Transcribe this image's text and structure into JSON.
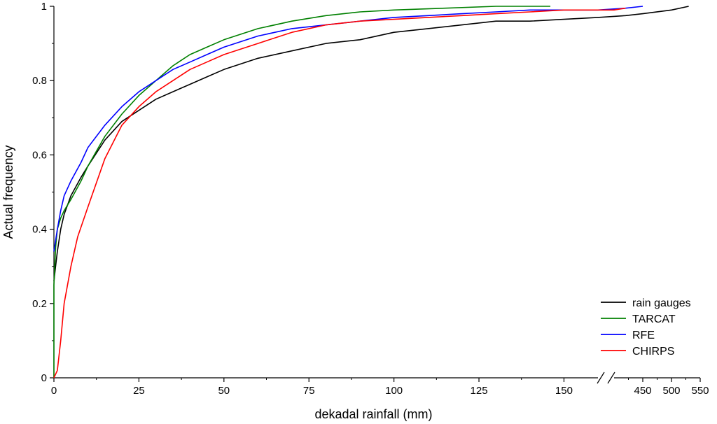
{
  "chart_data": {
    "type": "line",
    "title": "",
    "xlabel": "dekadal rainfall (mm)",
    "ylabel": "Actual frequency",
    "ylim": [
      0,
      1
    ],
    "x_segment_1": [
      0,
      160
    ],
    "x_segment_2": [
      400,
      550
    ],
    "x_break_marks": "//",
    "x_ticks_segment_1": [
      0,
      25,
      50,
      75,
      100,
      125,
      150
    ],
    "x_ticks_segment_2": [
      450,
      500,
      550
    ],
    "y_ticks": [
      0,
      0.2,
      0.4,
      0.6,
      0.8,
      1
    ],
    "legend_position": "bottom-right",
    "series": [
      {
        "name": "rain gauges",
        "color": "#000000",
        "points": [
          [
            0,
            0.26
          ],
          [
            0.5,
            0.3
          ],
          [
            1,
            0.34
          ],
          [
            2,
            0.4
          ],
          [
            3,
            0.44
          ],
          [
            5,
            0.49
          ],
          [
            8,
            0.54
          ],
          [
            10,
            0.57
          ],
          [
            15,
            0.64
          ],
          [
            20,
            0.69
          ],
          [
            25,
            0.72
          ],
          [
            30,
            0.75
          ],
          [
            35,
            0.77
          ],
          [
            40,
            0.79
          ],
          [
            45,
            0.81
          ],
          [
            50,
            0.83
          ],
          [
            60,
            0.86
          ],
          [
            70,
            0.88
          ],
          [
            80,
            0.9
          ],
          [
            90,
            0.91
          ],
          [
            100,
            0.93
          ],
          [
            110,
            0.94
          ],
          [
            120,
            0.95
          ],
          [
            130,
            0.96
          ],
          [
            140,
            0.96
          ],
          [
            150,
            0.965
          ],
          [
            160,
            0.97
          ],
          [
            420,
            0.975
          ],
          [
            450,
            0.98
          ],
          [
            500,
            0.99
          ],
          [
            530,
            1.0
          ]
        ]
      },
      {
        "name": "TARCAT",
        "color": "#008000",
        "points": [
          [
            0,
            0.0
          ],
          [
            0,
            0.25
          ],
          [
            0.5,
            0.35
          ],
          [
            1,
            0.4
          ],
          [
            2,
            0.43
          ],
          [
            3,
            0.45
          ],
          [
            5,
            0.48
          ],
          [
            8,
            0.53
          ],
          [
            10,
            0.57
          ],
          [
            15,
            0.65
          ],
          [
            20,
            0.71
          ],
          [
            25,
            0.76
          ],
          [
            30,
            0.8
          ],
          [
            35,
            0.84
          ],
          [
            40,
            0.87
          ],
          [
            45,
            0.89
          ],
          [
            50,
            0.91
          ],
          [
            60,
            0.94
          ],
          [
            70,
            0.96
          ],
          [
            80,
            0.975
          ],
          [
            90,
            0.985
          ],
          [
            100,
            0.99
          ],
          [
            115,
            0.995
          ],
          [
            130,
            1.0
          ],
          [
            146,
            1.0
          ]
        ]
      },
      {
        "name": "RFE",
        "color": "#0000ff",
        "points": [
          [
            0,
            0.34
          ],
          [
            1,
            0.4
          ],
          [
            2,
            0.45
          ],
          [
            3,
            0.49
          ],
          [
            5,
            0.53
          ],
          [
            8,
            0.58
          ],
          [
            10,
            0.62
          ],
          [
            15,
            0.68
          ],
          [
            20,
            0.73
          ],
          [
            25,
            0.77
          ],
          [
            30,
            0.8
          ],
          [
            35,
            0.83
          ],
          [
            40,
            0.85
          ],
          [
            45,
            0.87
          ],
          [
            50,
            0.89
          ],
          [
            60,
            0.92
          ],
          [
            70,
            0.94
          ],
          [
            80,
            0.95
          ],
          [
            90,
            0.96
          ],
          [
            100,
            0.97
          ],
          [
            110,
            0.975
          ],
          [
            120,
            0.98
          ],
          [
            130,
            0.985
          ],
          [
            140,
            0.99
          ],
          [
            150,
            0.99
          ],
          [
            160,
            0.99
          ],
          [
            420,
            0.995
          ],
          [
            450,
            1.0
          ]
        ]
      },
      {
        "name": "CHIRPS",
        "color": "#ff0000",
        "points": [
          [
            0,
            0.0
          ],
          [
            1,
            0.02
          ],
          [
            2,
            0.1
          ],
          [
            3,
            0.2
          ],
          [
            5,
            0.3
          ],
          [
            7,
            0.38
          ],
          [
            10,
            0.46
          ],
          [
            15,
            0.59
          ],
          [
            20,
            0.68
          ],
          [
            25,
            0.73
          ],
          [
            30,
            0.77
          ],
          [
            35,
            0.8
          ],
          [
            40,
            0.83
          ],
          [
            45,
            0.85
          ],
          [
            50,
            0.87
          ],
          [
            60,
            0.9
          ],
          [
            70,
            0.93
          ],
          [
            80,
            0.95
          ],
          [
            90,
            0.96
          ],
          [
            100,
            0.965
          ],
          [
            110,
            0.97
          ],
          [
            120,
            0.975
          ],
          [
            130,
            0.98
          ],
          [
            140,
            0.985
          ],
          [
            150,
            0.99
          ],
          [
            160,
            0.99
          ],
          [
            400,
            0.99
          ],
          [
            420,
            0.995
          ]
        ]
      }
    ]
  }
}
